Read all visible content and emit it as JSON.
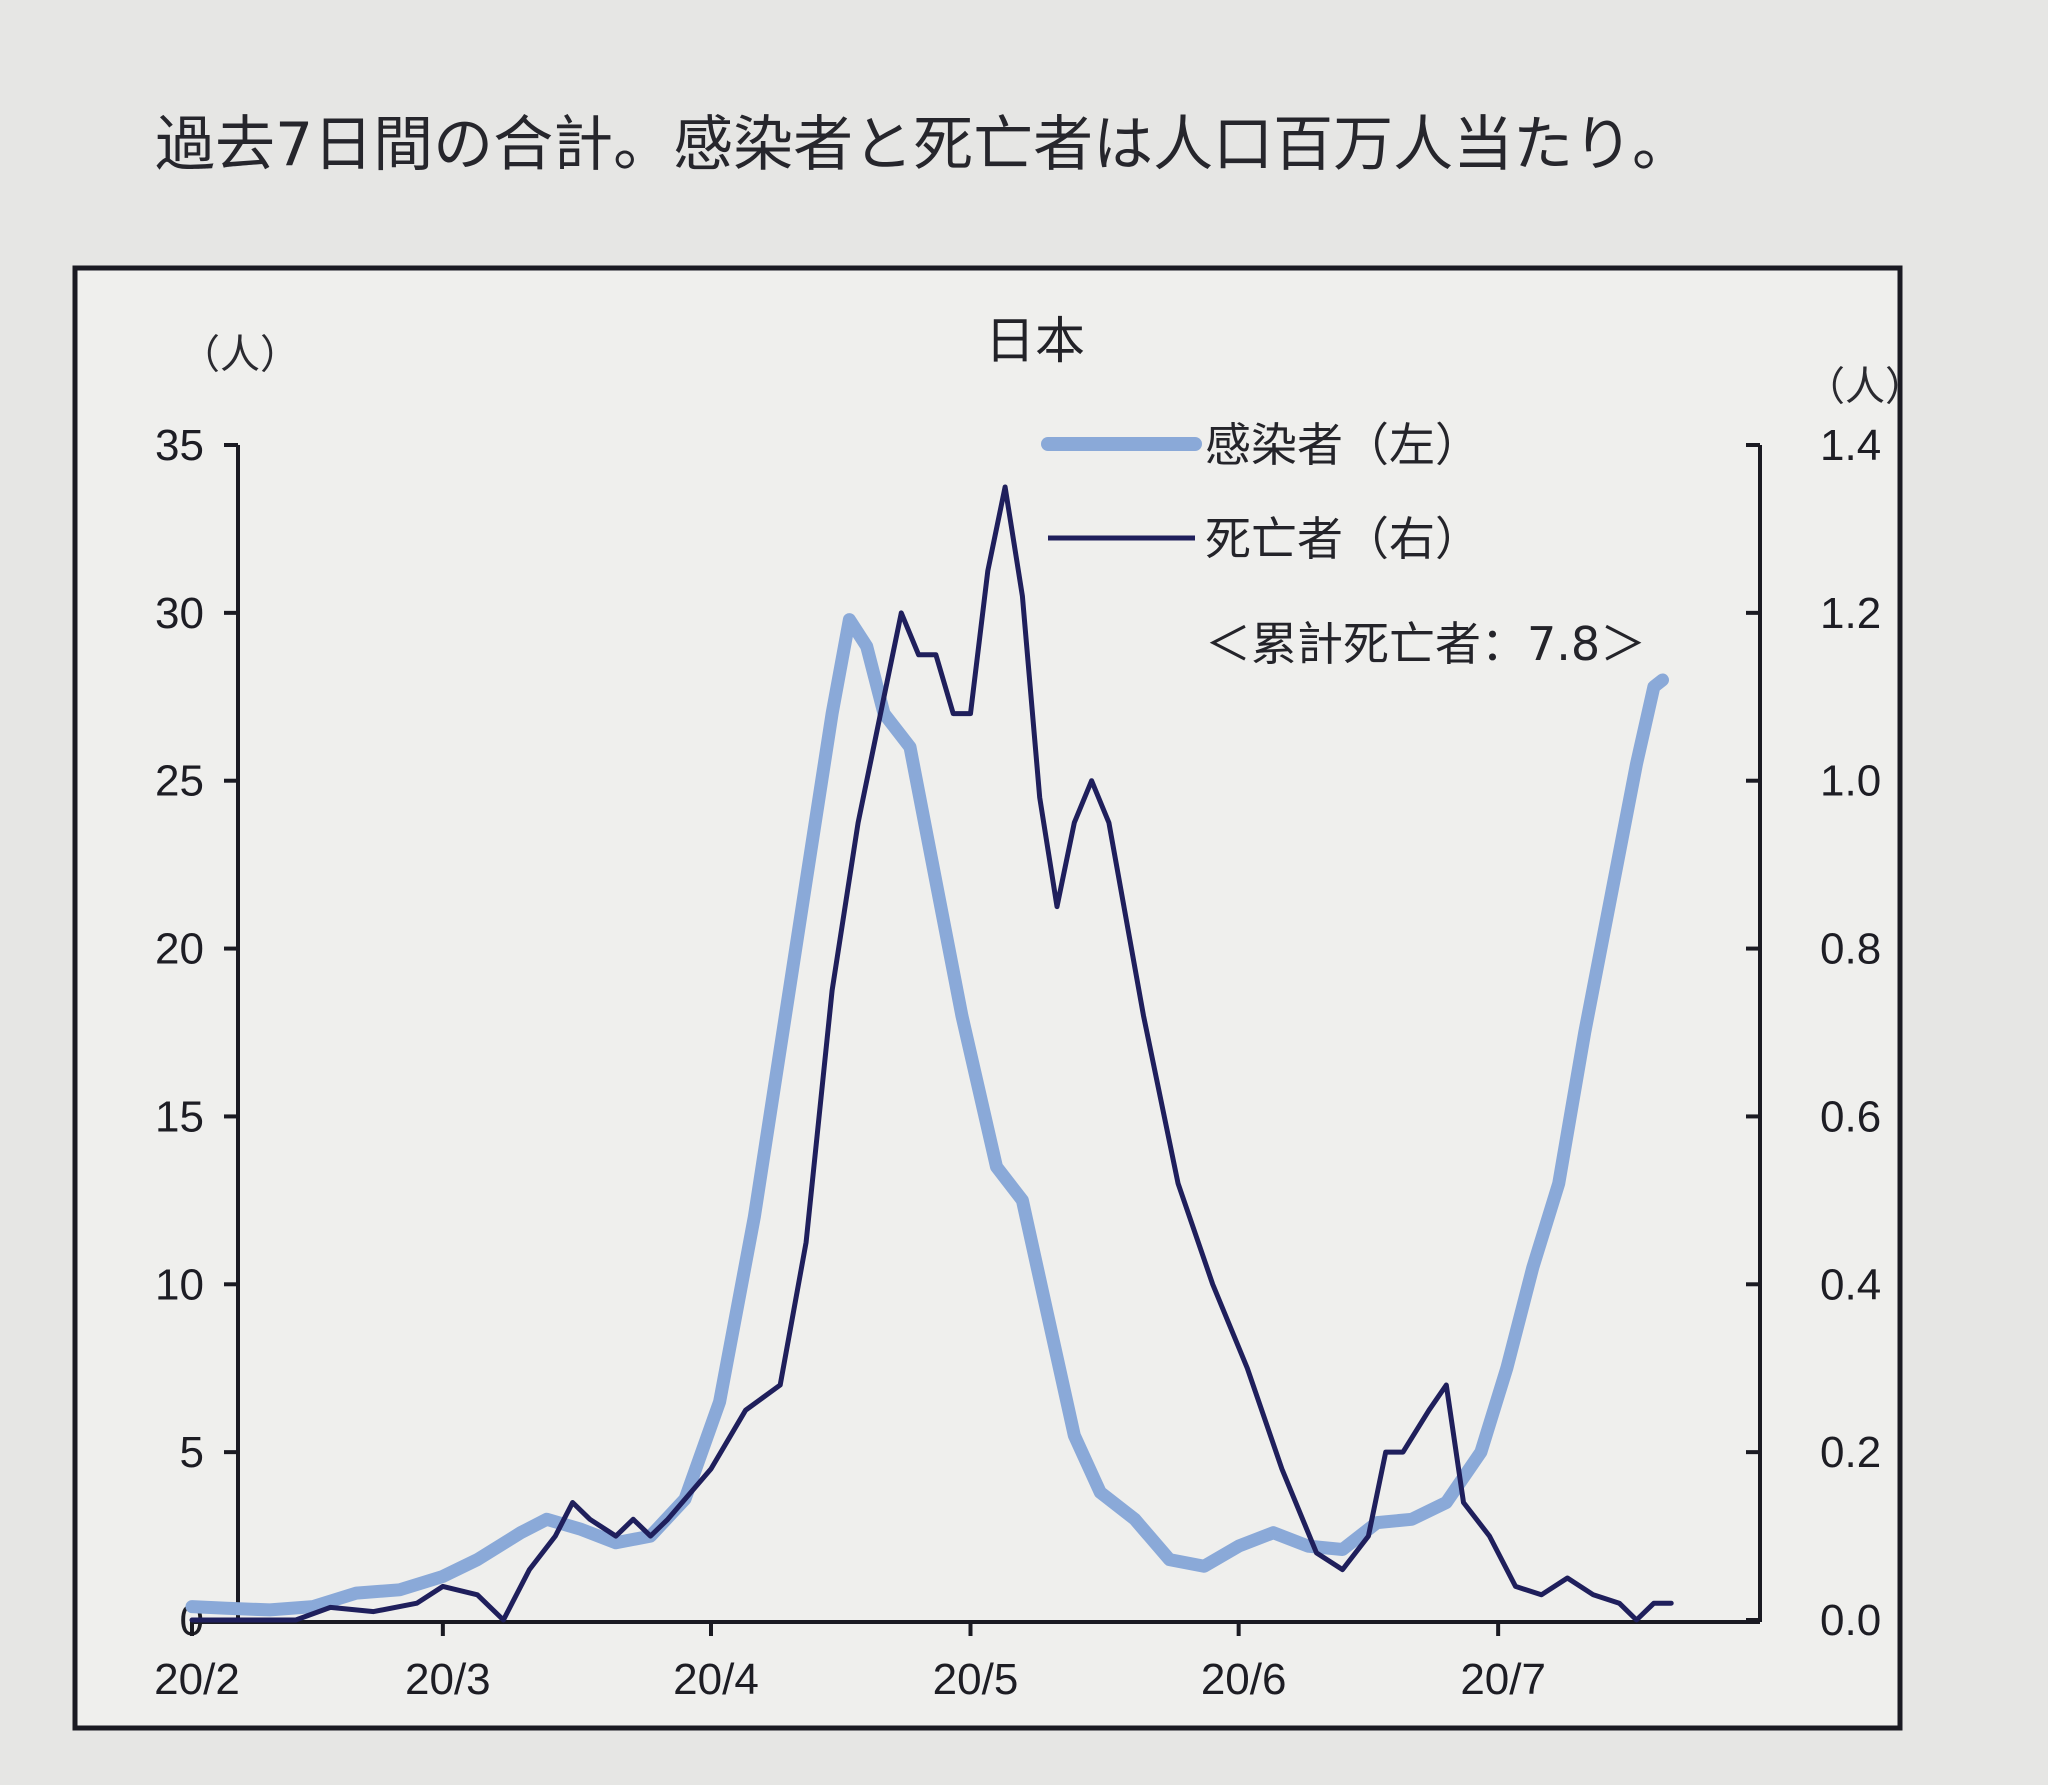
{
  "page": {
    "caption": "過去7日間の合計。感染者と死亡者は人口百万人当たり。"
  },
  "colors": {
    "background": "#e6e6e4",
    "panel": "#efefed",
    "infected": "#8aa9d8",
    "deaths": "#1f1f5c",
    "axis": "#1a1a22"
  },
  "chart_data": {
    "type": "line",
    "title": "日本",
    "left_axis": {
      "unit_label": "（人）",
      "range": [
        0,
        35
      ],
      "ticks": [
        0,
        5,
        10,
        15,
        20,
        25,
        30,
        35
      ]
    },
    "right_axis": {
      "unit_label": "（人）",
      "range": [
        0,
        1.4
      ],
      "ticks": [
        "0.0",
        "0.2",
        "0.4",
        "0.6",
        "0.8",
        "1.0",
        "1.2",
        "1.4"
      ]
    },
    "x_axis": {
      "tick_labels": [
        "20/2",
        "20/3",
        "20/4",
        "20/5",
        "20/6",
        "20/7"
      ]
    },
    "grid": false,
    "legend_position": "top-right",
    "annotation": "＜累計死亡者：7.8＞",
    "series": [
      {
        "name": "感染者（左）",
        "axis": "left",
        "points": [
          [
            "2020-02-01",
            0.4
          ],
          [
            "2020-02-05",
            0.35
          ],
          [
            "2020-02-10",
            0.3
          ],
          [
            "2020-02-15",
            0.4
          ],
          [
            "2020-02-20",
            0.8
          ],
          [
            "2020-02-25",
            0.9
          ],
          [
            "2020-03-01",
            1.3
          ],
          [
            "2020-03-05",
            1.8
          ],
          [
            "2020-03-10",
            2.6
          ],
          [
            "2020-03-13",
            3.0
          ],
          [
            "2020-03-17",
            2.7
          ],
          [
            "2020-03-21",
            2.3
          ],
          [
            "2020-03-25",
            2.5
          ],
          [
            "2020-03-29",
            3.6
          ],
          [
            "2020-04-02",
            6.5
          ],
          [
            "2020-04-06",
            12.0
          ],
          [
            "2020-04-09",
            17.0
          ],
          [
            "2020-04-12",
            22.0
          ],
          [
            "2020-04-15",
            27.0
          ],
          [
            "2020-04-17",
            29.8
          ],
          [
            "2020-04-19",
            29.0
          ],
          [
            "2020-04-21",
            27.0
          ],
          [
            "2020-04-24",
            26.0
          ],
          [
            "2020-04-27",
            22.0
          ],
          [
            "2020-04-30",
            18.0
          ],
          [
            "2020-05-04",
            13.5
          ],
          [
            "2020-05-07",
            12.5
          ],
          [
            "2020-05-10",
            9.0
          ],
          [
            "2020-05-13",
            5.5
          ],
          [
            "2020-05-16",
            3.8
          ],
          [
            "2020-05-20",
            3.0
          ],
          [
            "2020-05-24",
            1.8
          ],
          [
            "2020-05-28",
            1.6
          ],
          [
            "2020-06-01",
            2.2
          ],
          [
            "2020-06-05",
            2.6
          ],
          [
            "2020-06-09",
            2.2
          ],
          [
            "2020-06-13",
            2.1
          ],
          [
            "2020-06-17",
            2.9
          ],
          [
            "2020-06-21",
            3.0
          ],
          [
            "2020-06-25",
            3.5
          ],
          [
            "2020-06-29",
            5.0
          ],
          [
            "2020-07-02",
            7.5
          ],
          [
            "2020-07-05",
            10.5
          ],
          [
            "2020-07-08",
            13.0
          ],
          [
            "2020-07-11",
            17.5
          ],
          [
            "2020-07-14",
            21.5
          ],
          [
            "2020-07-17",
            25.5
          ],
          [
            "2020-07-19",
            27.8
          ],
          [
            "2020-07-20",
            28.0
          ]
        ]
      },
      {
        "name": "死亡者（右）",
        "axis": "right",
        "points": [
          [
            "2020-02-01",
            0.0
          ],
          [
            "2020-02-13",
            0.0
          ],
          [
            "2020-02-17",
            0.015
          ],
          [
            "2020-02-22",
            0.01
          ],
          [
            "2020-02-27",
            0.02
          ],
          [
            "2020-03-01",
            0.04
          ],
          [
            "2020-03-05",
            0.03
          ],
          [
            "2020-03-08",
            0.0
          ],
          [
            "2020-03-11",
            0.06
          ],
          [
            "2020-03-14",
            0.1
          ],
          [
            "2020-03-16",
            0.14
          ],
          [
            "2020-03-18",
            0.12
          ],
          [
            "2020-03-21",
            0.1
          ],
          [
            "2020-03-23",
            0.12
          ],
          [
            "2020-03-25",
            0.1
          ],
          [
            "2020-03-27",
            0.12
          ],
          [
            "2020-04-01",
            0.18
          ],
          [
            "2020-04-05",
            0.25
          ],
          [
            "2020-04-09",
            0.28
          ],
          [
            "2020-04-12",
            0.45
          ],
          [
            "2020-04-15",
            0.75
          ],
          [
            "2020-04-18",
            0.95
          ],
          [
            "2020-04-21",
            1.1
          ],
          [
            "2020-04-23",
            1.2
          ],
          [
            "2020-04-25",
            1.15
          ],
          [
            "2020-04-27",
            1.15
          ],
          [
            "2020-04-29",
            1.08
          ],
          [
            "2020-05-01",
            1.08
          ],
          [
            "2020-05-03",
            1.25
          ],
          [
            "2020-05-05",
            1.35
          ],
          [
            "2020-05-07",
            1.22
          ],
          [
            "2020-05-09",
            0.98
          ],
          [
            "2020-05-11",
            0.85
          ],
          [
            "2020-05-13",
            0.95
          ],
          [
            "2020-05-15",
            1.0
          ],
          [
            "2020-05-17",
            0.95
          ],
          [
            "2020-05-21",
            0.72
          ],
          [
            "2020-05-25",
            0.52
          ],
          [
            "2020-05-29",
            0.4
          ],
          [
            "2020-06-02",
            0.3
          ],
          [
            "2020-06-06",
            0.18
          ],
          [
            "2020-06-10",
            0.08
          ],
          [
            "2020-06-13",
            0.06
          ],
          [
            "2020-06-16",
            0.1
          ],
          [
            "2020-06-18",
            0.2
          ],
          [
            "2020-06-20",
            0.2
          ],
          [
            "2020-06-23",
            0.25
          ],
          [
            "2020-06-25",
            0.28
          ],
          [
            "2020-06-27",
            0.14
          ],
          [
            "2020-06-30",
            0.1
          ],
          [
            "2020-07-03",
            0.04
          ],
          [
            "2020-07-06",
            0.03
          ],
          [
            "2020-07-09",
            0.05
          ],
          [
            "2020-07-12",
            0.03
          ],
          [
            "2020-07-15",
            0.02
          ],
          [
            "2020-07-17",
            0.0
          ],
          [
            "2020-07-19",
            0.02
          ],
          [
            "2020-07-21",
            0.02
          ]
        ]
      }
    ]
  }
}
